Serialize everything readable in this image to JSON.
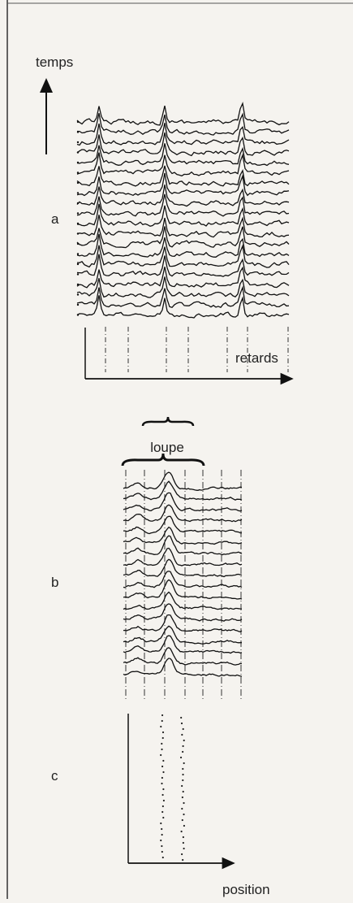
{
  "panels": [
    {
      "label": "a",
      "y_axis": "temps",
      "x_axis": "retards"
    },
    {
      "label": "b",
      "annotation": "loupe"
    },
    {
      "label": "c",
      "x_axis": "position"
    }
  ]
}
